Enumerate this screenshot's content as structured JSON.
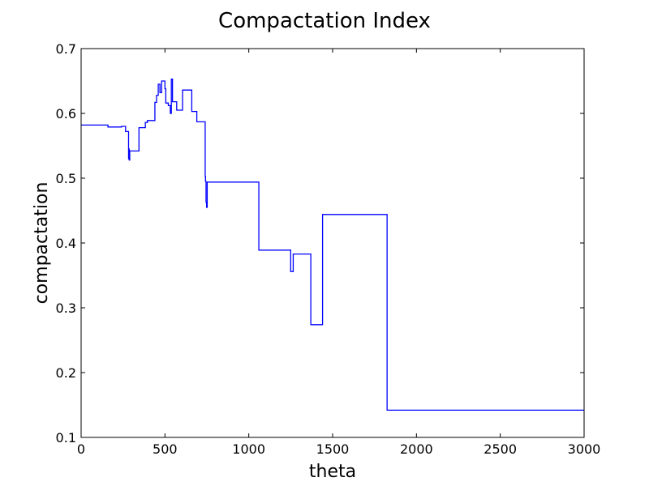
{
  "chart_data": {
    "type": "line",
    "title": "Compactation Index",
    "xlabel": "theta",
    "ylabel": "compactation",
    "xlim": [
      0,
      3000
    ],
    "ylim": [
      0.1,
      0.7
    ],
    "grid": false,
    "x_ticks": [
      "0",
      "500",
      "1000",
      "1500",
      "2000",
      "2500",
      "3000"
    ],
    "y_ticks": [
      "0.1",
      "0.2",
      "0.3",
      "0.4",
      "0.5",
      "0.6",
      "0.7"
    ],
    "series": [
      {
        "color": "#0000ff",
        "step": "post",
        "x": [
          0,
          160,
          240,
          265,
          283,
          285,
          287,
          290,
          345,
          383,
          395,
          440,
          450,
          460,
          470,
          480,
          500,
          505,
          520,
          532,
          538,
          545,
          570,
          605,
          660,
          690,
          733,
          740,
          742,
          745,
          748,
          752,
          1060,
          1250,
          1265,
          1370,
          1440,
          1825,
          3000
        ],
        "y": [
          0.582,
          0.579,
          0.58,
          0.572,
          0.53,
          0.545,
          0.528,
          0.542,
          0.578,
          0.586,
          0.589,
          0.617,
          0.628,
          0.645,
          0.632,
          0.65,
          0.638,
          0.616,
          0.612,
          0.6,
          0.653,
          0.618,
          0.605,
          0.636,
          0.603,
          0.587,
          0.587,
          0.503,
          0.495,
          0.463,
          0.455,
          0.494,
          0.389,
          0.356,
          0.383,
          0.274,
          0.444,
          0.142,
          0.142
        ]
      }
    ]
  }
}
